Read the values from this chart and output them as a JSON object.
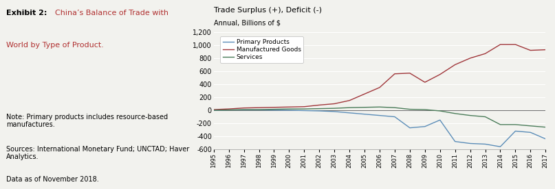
{
  "years": [
    1995,
    1996,
    1997,
    1998,
    1999,
    2000,
    2001,
    2002,
    2003,
    2004,
    2005,
    2006,
    2007,
    2008,
    2009,
    2010,
    2011,
    2012,
    2013,
    2014,
    2015,
    2016,
    2017
  ],
  "primary_products": [
    0,
    5,
    5,
    5,
    2,
    0,
    -5,
    -10,
    -20,
    -40,
    -60,
    -80,
    -100,
    -270,
    -250,
    -150,
    -480,
    -510,
    -520,
    -560,
    -320,
    -340,
    -440
  ],
  "manufactured_goods": [
    10,
    20,
    35,
    40,
    45,
    50,
    55,
    80,
    100,
    150,
    250,
    350,
    560,
    570,
    430,
    550,
    700,
    800,
    870,
    1010,
    1010,
    920,
    930
  ],
  "services": [
    0,
    5,
    10,
    10,
    15,
    20,
    20,
    25,
    30,
    40,
    45,
    50,
    40,
    15,
    10,
    -10,
    -50,
    -80,
    -100,
    -220,
    -220,
    -240,
    -260
  ],
  "primary_color": "#5b8db8",
  "manufactured_color": "#a0363a",
  "services_color": "#4a7c59",
  "chart_title": "Trade Surplus (+), Deficit (-)",
  "chart_subtitle": "Annual, Billions of $",
  "ylim": [
    -600,
    1200
  ],
  "yticks": [
    -600,
    -400,
    -200,
    0,
    200,
    400,
    600,
    800,
    1000,
    1200
  ],
  "legend_labels": [
    "Primary Products",
    "Manufactured Goods",
    "Services"
  ],
  "bg_color": "#f2f2ee",
  "exhibit_bold": "Exhibit 2:",
  "exhibit_red": "China’s Balance of Trade with",
  "exhibit_red2": "World by Type of Product.",
  "note_text": "Note: Primary products includes resource-based\nmanufactures.",
  "sources_text": "Sources: International Monetary Fund; UNCTAD; Haver\nAnalytics.",
  "data_text": "Data as of November 2018."
}
